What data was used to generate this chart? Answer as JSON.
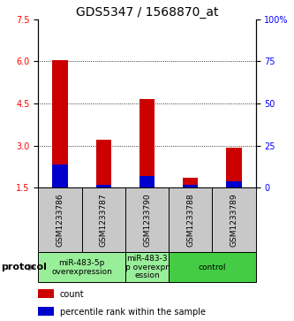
{
  "title": "GDS5347 / 1568870_at",
  "samples": [
    "GSM1233786",
    "GSM1233787",
    "GSM1233790",
    "GSM1233788",
    "GSM1233789"
  ],
  "red_values": [
    6.03,
    3.22,
    4.65,
    1.87,
    2.92
  ],
  "blue_values": [
    2.32,
    1.62,
    1.92,
    1.62,
    1.72
  ],
  "ylim": [
    1.5,
    7.5
  ],
  "yticks_left": [
    1.5,
    3.0,
    4.5,
    6.0,
    7.5
  ],
  "yticks_right_labels": [
    "0",
    "25",
    "50",
    "75",
    "100%"
  ],
  "yticks_right_vals": [
    1.5,
    3.0,
    4.5,
    6.0,
    7.5
  ],
  "gridlines": [
    3.0,
    4.5,
    6.0
  ],
  "bar_width": 0.35,
  "red_color": "#cc0000",
  "blue_color": "#0000cc",
  "title_fontsize": 10,
  "tick_fontsize": 7,
  "sample_label_fontsize": 6.5,
  "group_label_fontsize": 6.5,
  "legend_fontsize": 7,
  "protocol_fontsize": 8,
  "group_bg_color": "#c8c8c8",
  "green_light": "#99ee99",
  "green_dark": "#44cc44",
  "groups_def": [
    [
      0,
      1,
      "miR-483-5p\noverexpression",
      "#99ee99"
    ],
    [
      2,
      2,
      "miR-483-3\np overexpr\nession",
      "#99ee99"
    ],
    [
      3,
      4,
      "control",
      "#44cc44"
    ]
  ]
}
